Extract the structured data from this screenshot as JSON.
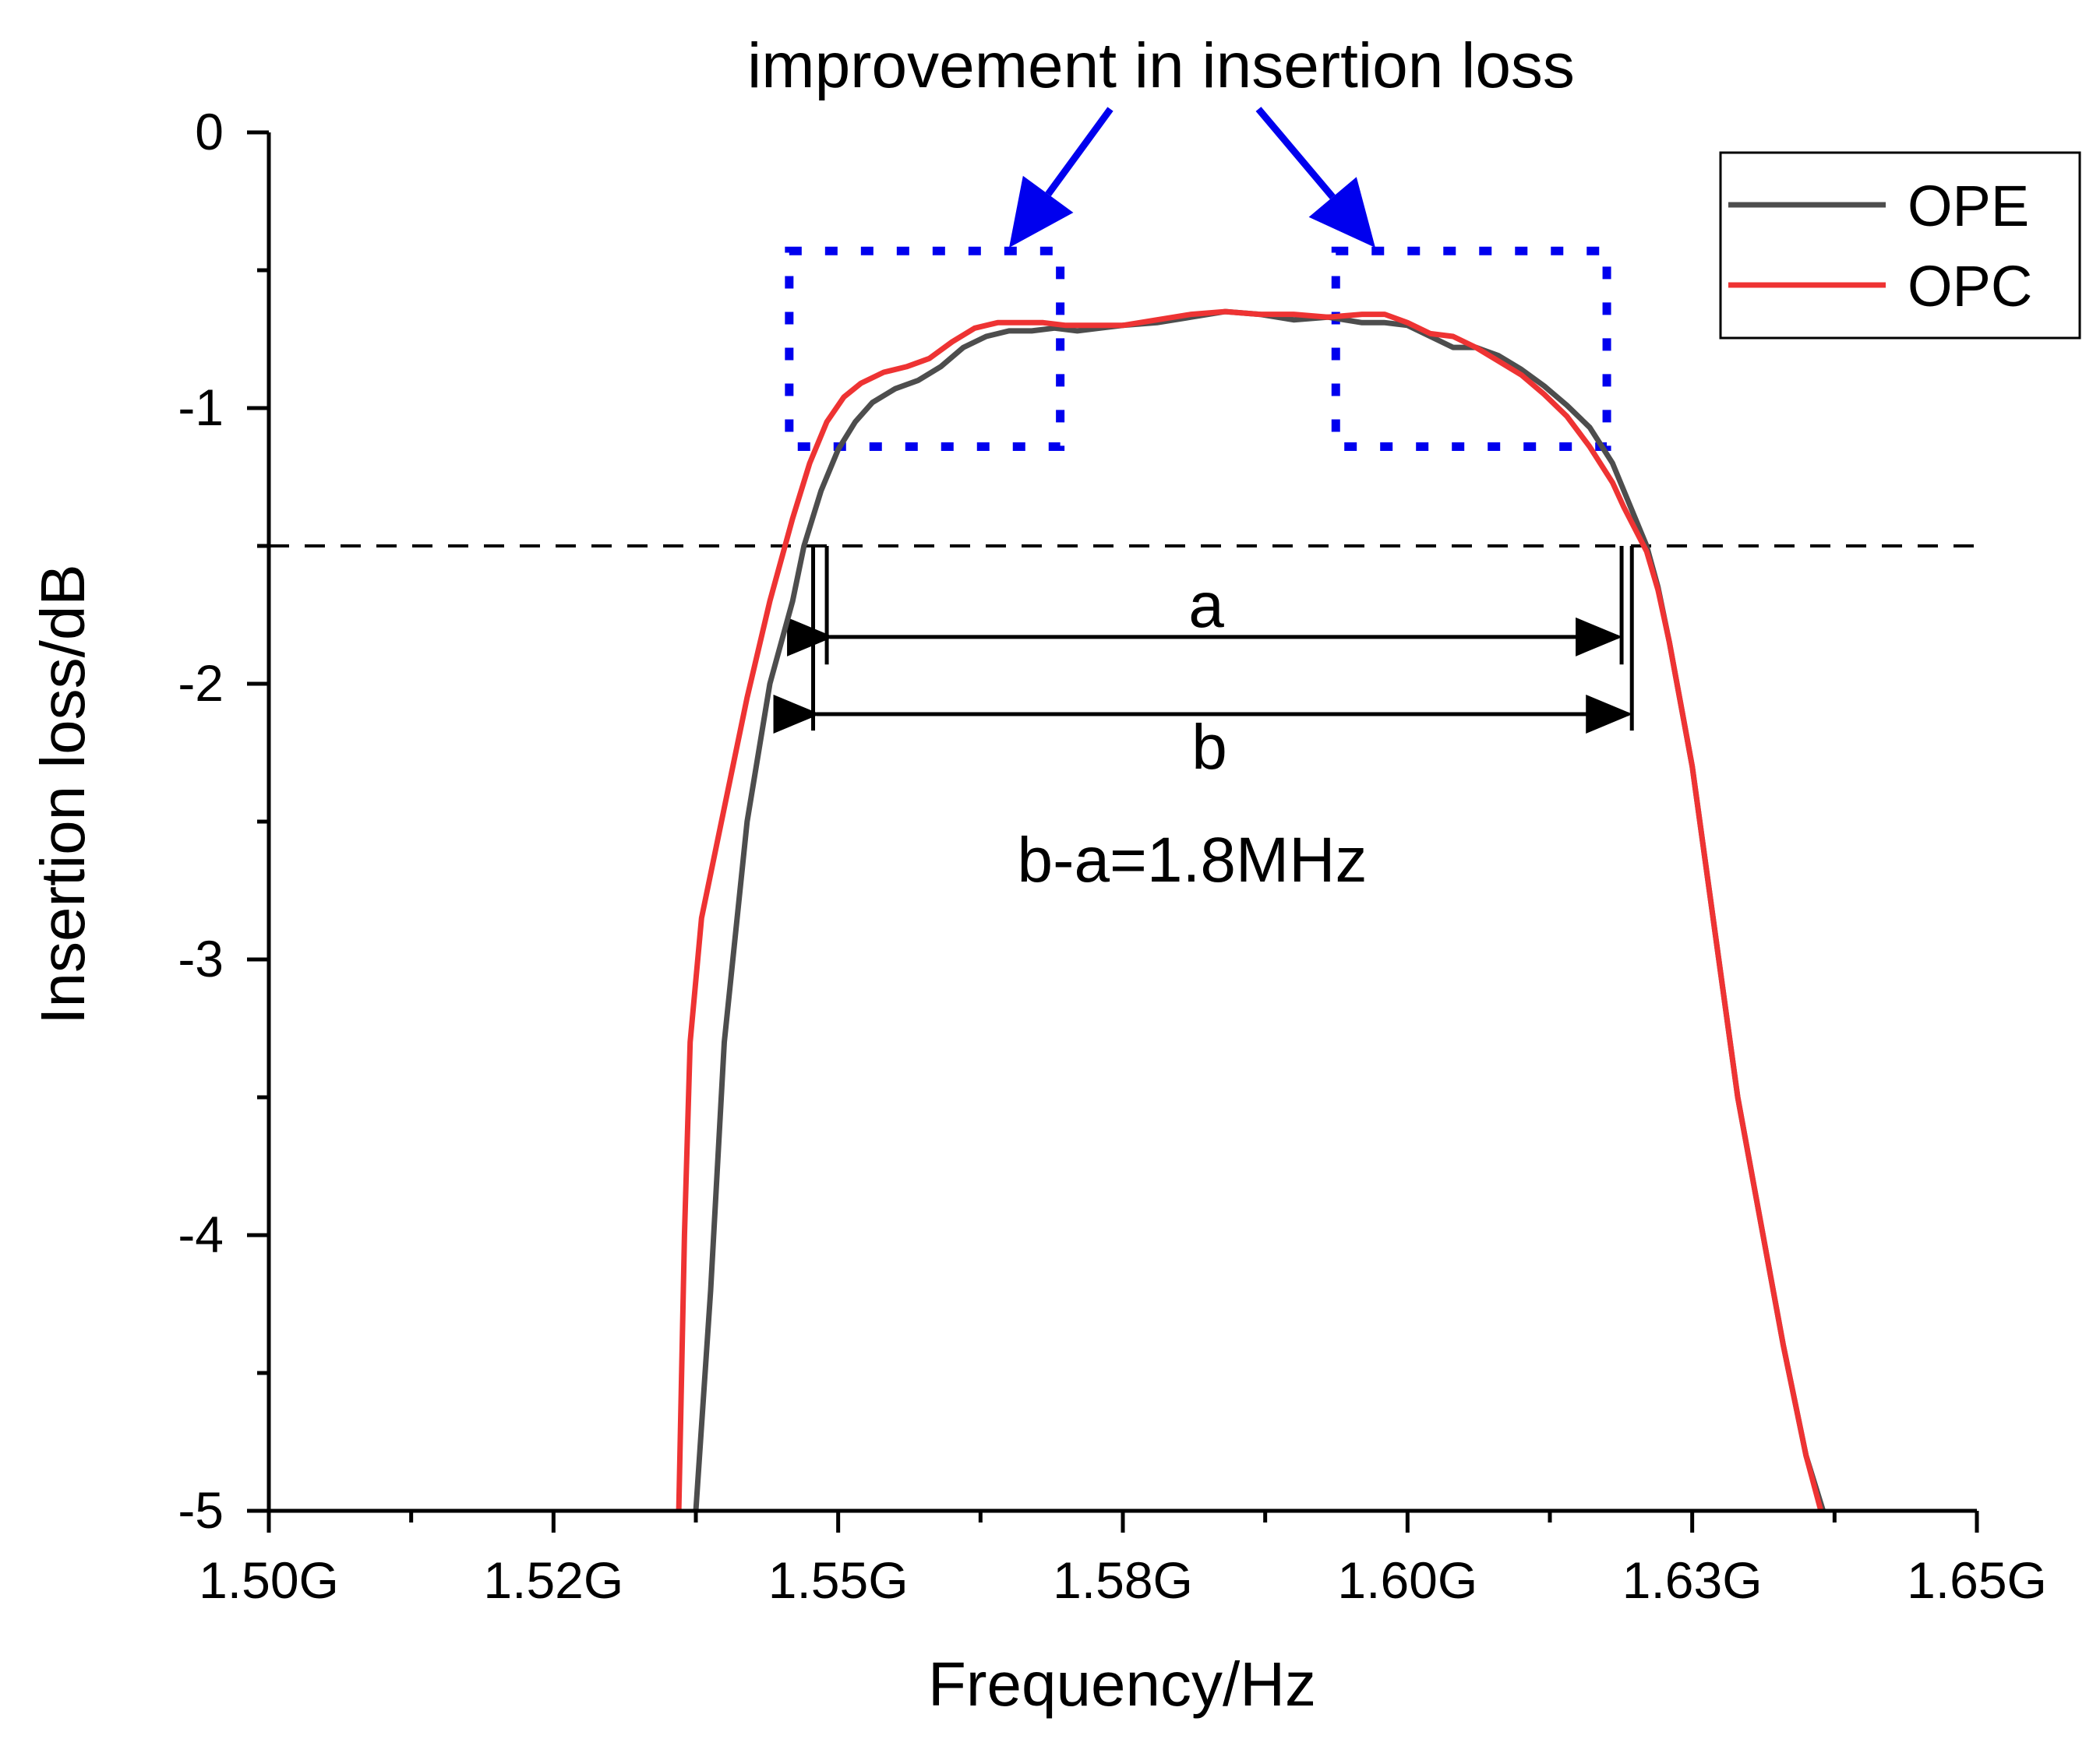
{
  "chart_data": {
    "type": "line",
    "title": "",
    "xlabel": "Frequency/Hz",
    "ylabel": "Insertion loss/dB",
    "xlim": [
      1.5,
      1.65
    ],
    "ylim": [
      -5,
      0
    ],
    "x_ticks": [
      1.5,
      1.525,
      1.55,
      1.575,
      1.6,
      1.625,
      1.65
    ],
    "x_tick_labels": [
      "1.50G",
      "1.52G",
      "1.55G",
      "1.58G",
      "1.60G",
      "1.63G",
      "1.65G"
    ],
    "y_ticks": [
      0,
      -1,
      -2,
      -3,
      -4,
      -5
    ],
    "y_tick_labels": [
      "0",
      "-1",
      "-2",
      "-3",
      "-4",
      "-5"
    ],
    "x_minor_ticks": [
      1.5125,
      1.5375,
      1.5625,
      1.5875,
      1.6125,
      1.6375
    ],
    "y_minor_ticks": [
      -0.5,
      -1.5,
      -2.5,
      -3.5,
      -4.5
    ],
    "grid": false,
    "legend_position": "top-right",
    "reference_line": {
      "y": -1.5,
      "style": "dashed",
      "color": "#000000"
    },
    "series": [
      {
        "name": "OPE",
        "color": "#4d4d4d",
        "x": [
          1.5375,
          1.5388,
          1.54,
          1.542,
          1.544,
          1.546,
          1.547,
          1.5485,
          1.55,
          1.5515,
          1.553,
          1.555,
          1.557,
          1.559,
          1.561,
          1.563,
          1.565,
          1.567,
          1.569,
          1.571,
          1.573,
          1.575,
          1.578,
          1.581,
          1.584,
          1.587,
          1.59,
          1.593,
          1.596,
          1.598,
          1.6,
          1.602,
          1.604,
          1.606,
          1.608,
          1.61,
          1.612,
          1.614,
          1.616,
          1.618,
          1.619,
          1.62,
          1.621,
          1.622,
          1.623,
          1.625,
          1.627,
          1.629,
          1.631,
          1.633,
          1.635,
          1.6365
        ],
        "y": [
          -5.0,
          -4.2,
          -3.3,
          -2.5,
          -2.0,
          -1.7,
          -1.5,
          -1.3,
          -1.15,
          -1.05,
          -0.98,
          -0.93,
          -0.9,
          -0.85,
          -0.78,
          -0.74,
          -0.72,
          -0.72,
          -0.71,
          -0.72,
          -0.71,
          -0.7,
          -0.69,
          -0.67,
          -0.65,
          -0.66,
          -0.68,
          -0.67,
          -0.69,
          -0.69,
          -0.7,
          -0.74,
          -0.78,
          -0.78,
          -0.81,
          -0.86,
          -0.92,
          -0.99,
          -1.07,
          -1.2,
          -1.3,
          -1.4,
          -1.5,
          -1.65,
          -1.85,
          -2.3,
          -2.9,
          -3.5,
          -3.95,
          -4.4,
          -4.8,
          -5.0
        ]
      },
      {
        "name": "OPC",
        "color": "#ee3333",
        "x": [
          1.536,
          1.5365,
          1.537,
          1.538,
          1.54,
          1.542,
          1.544,
          1.546,
          1.5475,
          1.549,
          1.5505,
          1.552,
          1.554,
          1.556,
          1.558,
          1.56,
          1.562,
          1.564,
          1.566,
          1.568,
          1.57,
          1.572,
          1.575,
          1.578,
          1.581,
          1.584,
          1.587,
          1.59,
          1.593,
          1.596,
          1.598,
          1.6,
          1.602,
          1.604,
          1.606,
          1.608,
          1.61,
          1.612,
          1.614,
          1.616,
          1.618,
          1.619,
          1.62,
          1.621,
          1.622,
          1.623,
          1.625,
          1.627,
          1.629,
          1.631,
          1.633,
          1.635,
          1.6363
        ],
        "y": [
          -5.0,
          -4.0,
          -3.3,
          -2.85,
          -2.45,
          -2.05,
          -1.7,
          -1.4,
          -1.2,
          -1.05,
          -0.96,
          -0.91,
          -0.87,
          -0.85,
          -0.82,
          -0.76,
          -0.71,
          -0.69,
          -0.69,
          -0.69,
          -0.7,
          -0.7,
          -0.7,
          -0.68,
          -0.66,
          -0.65,
          -0.66,
          -0.66,
          -0.67,
          -0.66,
          -0.66,
          -0.69,
          -0.73,
          -0.74,
          -0.78,
          -0.83,
          -0.88,
          -0.95,
          -1.03,
          -1.14,
          -1.27,
          -1.36,
          -1.44,
          -1.52,
          -1.66,
          -1.85,
          -2.3,
          -2.9,
          -3.5,
          -3.95,
          -4.4,
          -4.8,
          -5.0
        ]
      }
    ],
    "annotations": {
      "top_text": "improvement in insertion loss",
      "label_a": "a",
      "label_b": "b",
      "difference_text": "b-a=1.8MHz",
      "highlight_boxes": [
        {
          "x": [
            1.5457,
            1.5695
          ],
          "y": [
            -1.14,
            -0.43
          ]
        },
        {
          "x": [
            1.5937,
            1.6175
          ],
          "y": [
            -1.14,
            -0.43
          ]
        }
      ],
      "span_a": {
        "x": [
          1.549,
          1.6188
        ],
        "y": -1.83
      },
      "span_b": {
        "x": [
          1.5478,
          1.6197
        ],
        "y": -2.11
      },
      "colors": {
        "box": "#0000ee",
        "arrow": "#0000ee",
        "span": "#000000"
      }
    }
  }
}
